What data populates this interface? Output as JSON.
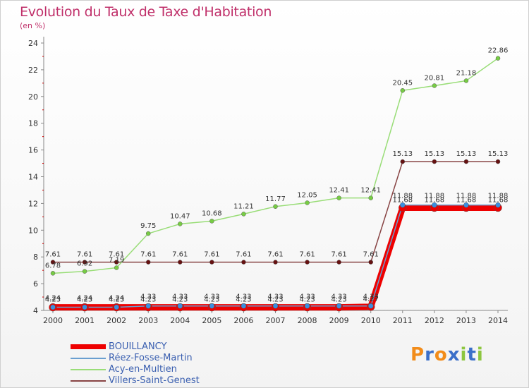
{
  "header": {
    "title": "Evolution du Taux de Taxe d'Habitation",
    "unit": "(en %)"
  },
  "logo": {
    "letters": [
      "P",
      "r",
      "o",
      "x",
      "i",
      "t",
      "i"
    ],
    "colors": [
      "#f28c1a",
      "#3b6fc9",
      "#f28c1a",
      "#3b6fc9",
      "#8dc63f",
      "#3b6fc9",
      "#8dc63f"
    ]
  },
  "chart_data": {
    "type": "line",
    "x": [
      2000,
      2001,
      2002,
      2003,
      2004,
      2005,
      2006,
      2007,
      2008,
      2009,
      2010,
      2011,
      2012,
      2013,
      2014
    ],
    "ylim": [
      4,
      24
    ],
    "yticks": [
      4,
      6,
      8,
      10,
      12,
      14,
      16,
      18,
      20,
      22,
      24
    ],
    "grid": false,
    "legend_position": "bottom-left",
    "series": [
      {
        "name": "BOUILLANCY",
        "color": "#ee0000",
        "marker": "#ee0000",
        "values": [
          4.23,
          4.23,
          4.23,
          4.23,
          4.23,
          4.23,
          4.23,
          4.23,
          4.23,
          4.23,
          4.27,
          11.68,
          11.68,
          11.68,
          11.68
        ],
        "labels": [
          "4.23",
          "4.23",
          "4.23",
          "4.23",
          "4.23",
          "4.23",
          "4.23",
          "4.23",
          "4.23",
          "4.23",
          "4.27",
          "11.68",
          "11.68",
          "11.68",
          "11.68"
        ]
      },
      {
        "name": "Réez-Fosse-Martin",
        "color": "#6a9fd0",
        "marker": "#3b8fe0",
        "values": [
          4.24,
          4.24,
          4.24,
          4.33,
          4.33,
          4.33,
          4.33,
          4.33,
          4.33,
          4.33,
          4.33,
          11.88,
          11.88,
          11.88,
          11.88
        ],
        "labels": [
          "4.24",
          "4.24",
          "4.24",
          "4.33",
          "4.33",
          "4.33",
          "4.33",
          "4.33",
          "4.33",
          "4.33",
          "4.33",
          "11.88",
          "11.88",
          "11.88",
          "11.88"
        ]
      },
      {
        "name": "Acy-en-Multien",
        "color": "#99dd77",
        "marker": "#77cc44",
        "values": [
          6.78,
          6.92,
          7.19,
          9.75,
          10.47,
          10.68,
          11.21,
          11.77,
          12.05,
          12.41,
          12.41,
          20.45,
          20.81,
          21.18,
          22.86
        ],
        "labels": [
          "6.78",
          "6.92",
          "7.19",
          "9.75",
          "10.47",
          "10.68",
          "11.21",
          "11.77",
          "12.05",
          "12.41",
          "12.41",
          "20.45",
          "20.81",
          "21.18",
          "22.86"
        ]
      },
      {
        "name": "Villers-Saint-Genest",
        "color": "#884444",
        "marker": "#661111",
        "values": [
          7.61,
          7.61,
          7.61,
          7.61,
          7.61,
          7.61,
          7.61,
          7.61,
          7.61,
          7.61,
          7.61,
          15.13,
          15.13,
          15.13,
          15.13
        ],
        "labels": [
          "7.61",
          "7.61",
          "7.61",
          "7.61",
          "7.61",
          "7.61",
          "7.61",
          "7.61",
          "7.61",
          "7.61",
          "7.61",
          "15.13",
          "15.13",
          "15.13",
          "15.13"
        ]
      }
    ]
  }
}
